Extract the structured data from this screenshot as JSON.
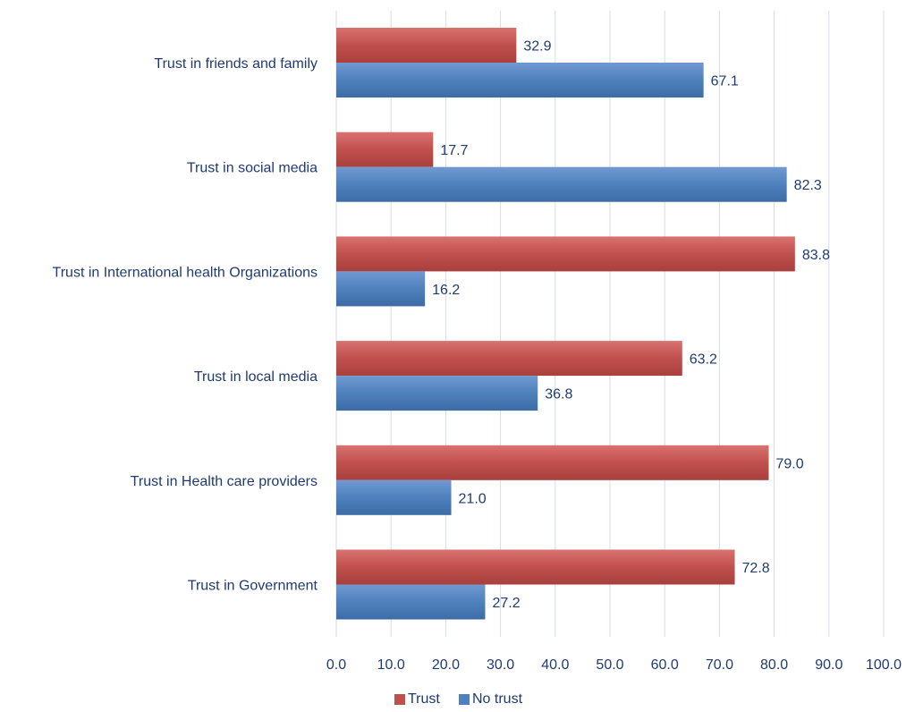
{
  "chart_data": {
    "type": "bar",
    "orientation": "horizontal",
    "categories": [
      "Trust in friends and family",
      "Trust in social media",
      "Trust in International health Organizations",
      "Trust in local media",
      "Trust in Health care providers",
      "Trust in Government"
    ],
    "series": [
      {
        "name": "Trust",
        "color": "#c0504d",
        "values": [
          32.9,
          17.7,
          83.8,
          63.2,
          79.0,
          72.8
        ]
      },
      {
        "name": "No trust",
        "color": "#4f81bd",
        "values": [
          67.1,
          82.3,
          16.2,
          36.8,
          21.0,
          27.2
        ]
      }
    ],
    "xlim": [
      0,
      100
    ],
    "xticks": [
      "0.0",
      "10.0",
      "20.0",
      "30.0",
      "40.0",
      "50.0",
      "60.0",
      "70.0",
      "80.0",
      "90.0",
      "100.0"
    ],
    "data_labels": true,
    "grid": "vertical",
    "legend_position": "bottom"
  }
}
